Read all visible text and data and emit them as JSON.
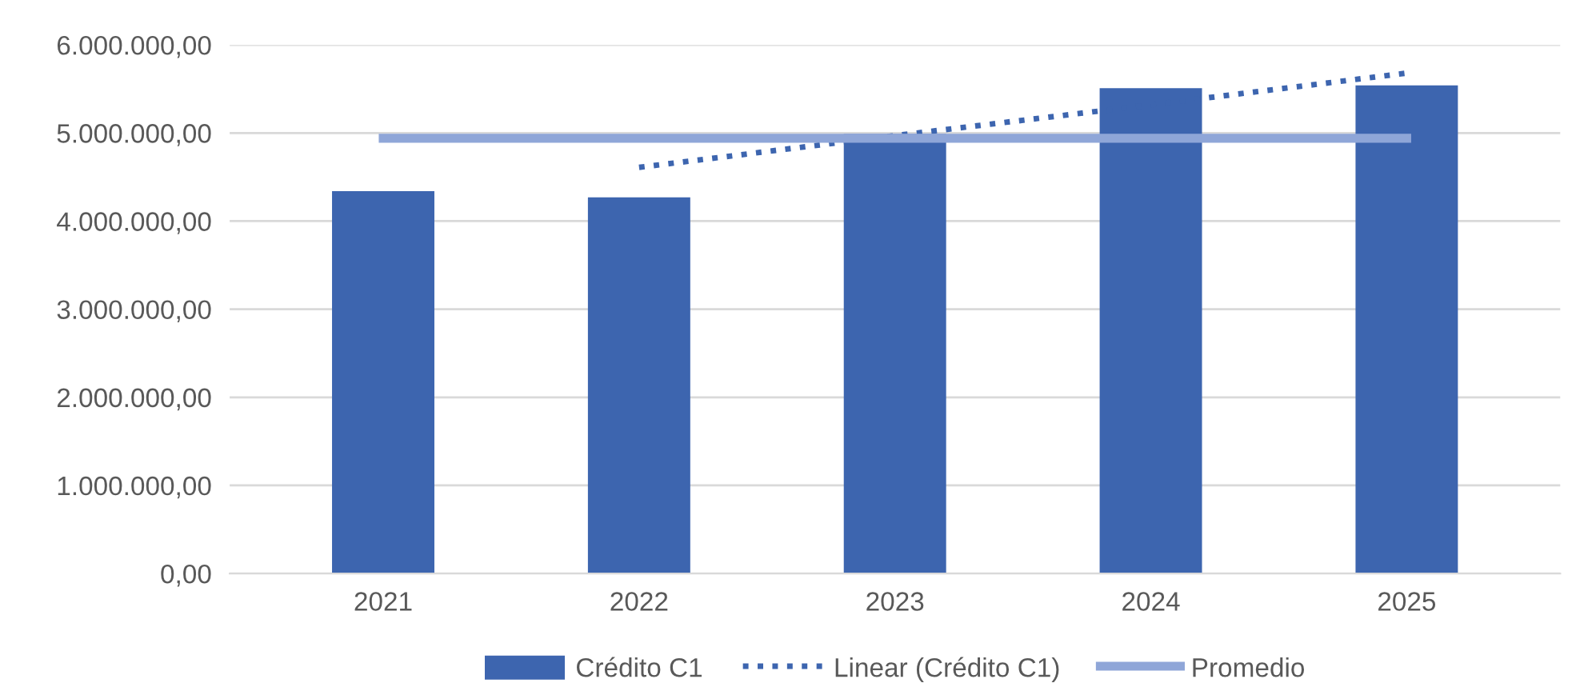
{
  "chart_data": {
    "type": "bar",
    "categories": [
      "2021",
      "2022",
      "2023",
      "2024",
      "2025"
    ],
    "series": [
      {
        "name": "Crédito C1",
        "color": "#3d65af",
        "values": [
          4340000,
          4270000,
          4990000,
          5510000,
          5540000
        ]
      },
      {
        "name": "Linear (Crédito C1)",
        "type": "line",
        "line_style": "dotted",
        "color": "#3d65af",
        "values": [
          null,
          4610000,
          4970000,
          5320000,
          5680000
        ]
      },
      {
        "name": "Promedio",
        "type": "line",
        "line_style": "solid",
        "color": "#8fa6d8",
        "values": [
          4940000,
          4940000,
          4940000,
          4940000,
          4940000
        ]
      }
    ],
    "ylim": [
      0,
      6000000
    ],
    "yticks": [
      {
        "value": 0,
        "label": "0,00"
      },
      {
        "value": 1000000,
        "label": "1.000.000,00"
      },
      {
        "value": 2000000,
        "label": "2.000.000,00"
      },
      {
        "value": 3000000,
        "label": "3.000.000,00"
      },
      {
        "value": 4000000,
        "label": "4.000.000,00"
      },
      {
        "value": 5000000,
        "label": "5.000.000,00"
      },
      {
        "value": 6000000,
        "label": "6.000.000,00"
      }
    ],
    "grid": "y",
    "legend": "bottom"
  }
}
